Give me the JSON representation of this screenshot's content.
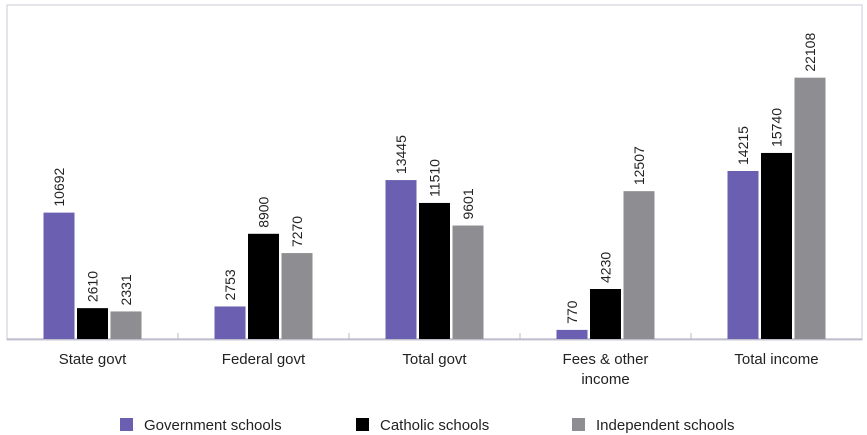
{
  "chart_data": {
    "type": "bar",
    "title": "",
    "xlabel": "",
    "ylabel": "",
    "categories": [
      [
        "State govt"
      ],
      [
        "Federal govt"
      ],
      [
        "Total govt"
      ],
      [
        "Fees & other",
        "income"
      ],
      [
        "Total income"
      ]
    ],
    "series": [
      {
        "name": "Government schools",
        "color": "#6a5fb0",
        "values": [
          10692,
          2753,
          13445,
          770,
          14215
        ]
      },
      {
        "name": "Catholic schools",
        "color": "#000000",
        "values": [
          2610,
          8900,
          11510,
          4230,
          15740
        ]
      },
      {
        "name": "Independent schools",
        "color": "#8e8e92",
        "values": [
          2331,
          7270,
          9601,
          12507,
          22108
        ]
      }
    ],
    "ylim": [
      0,
      27000
    ],
    "grid": false,
    "legend": "bottom"
  }
}
